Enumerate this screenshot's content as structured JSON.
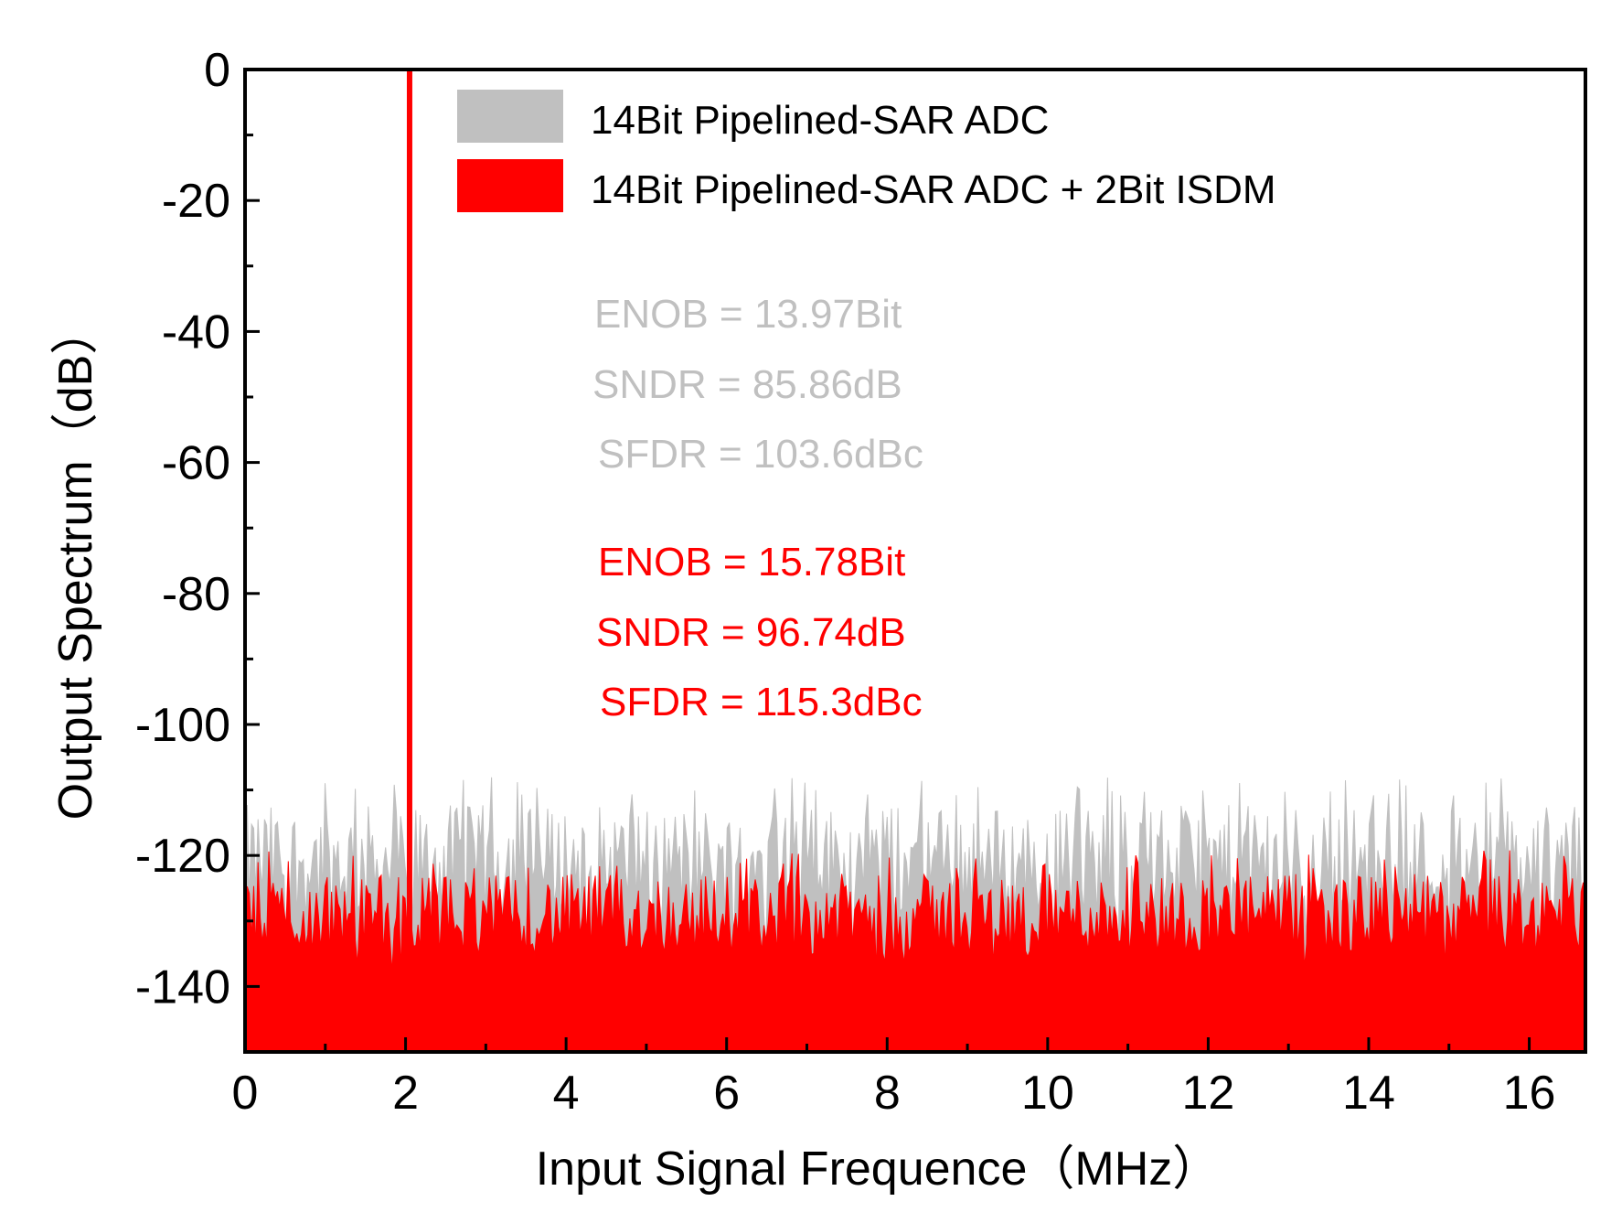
{
  "chart_data": {
    "type": "area",
    "title": "",
    "xlabel": "Input Signal Frequence（MHz）",
    "ylabel": "Output Spectrum（dB）",
    "xlim": [
      0,
      16.7
    ],
    "ylim": [
      -150,
      0
    ],
    "x_ticks": [
      0,
      2,
      4,
      6,
      8,
      10,
      12,
      14,
      16
    ],
    "x_tick_labels": [
      "0",
      "2",
      "4",
      "6",
      "8",
      "10",
      "12",
      "14",
      "16"
    ],
    "y_ticks": [
      0,
      -20,
      -40,
      -60,
      -80,
      -100,
      -120,
      -140
    ],
    "y_tick_labels": [
      "0",
      "-20",
      "-40",
      "-60",
      "-80",
      "-100",
      "-120",
      "-140"
    ],
    "grid": false,
    "legend_position": "top-right",
    "series": [
      {
        "name": "14Bit Pipelined-SAR ADC",
        "color": "#c0c0c0",
        "noise_floor_mean_db": -121,
        "noise_floor_min_db": -135,
        "noise_floor_max_db": -108,
        "peak": {
          "x": 2.05,
          "y": 0
        }
      },
      {
        "name": "14Bit Pipelined-SAR ADC + 2Bit ISDM",
        "color": "#ff0000",
        "noise_floor_mean_db": -129,
        "noise_floor_min_db": -138,
        "noise_floor_max_db": -119,
        "peak": {
          "x": 2.05,
          "y": 0
        }
      }
    ],
    "annotations": [
      {
        "text": "ENOB = 13.97Bit",
        "color": "#c0c0c0"
      },
      {
        "text": "SNDR = 85.86dB",
        "color": "#c0c0c0"
      },
      {
        "text": "SFDR = 103.6dBc",
        "color": "#c0c0c0"
      },
      {
        "text": "ENOB = 15.78Bit",
        "color": "#ff0000"
      },
      {
        "text": "SNDR = 96.74dB",
        "color": "#ff0000"
      },
      {
        "text": "SFDR = 115.3dBc",
        "color": "#ff0000"
      }
    ]
  }
}
